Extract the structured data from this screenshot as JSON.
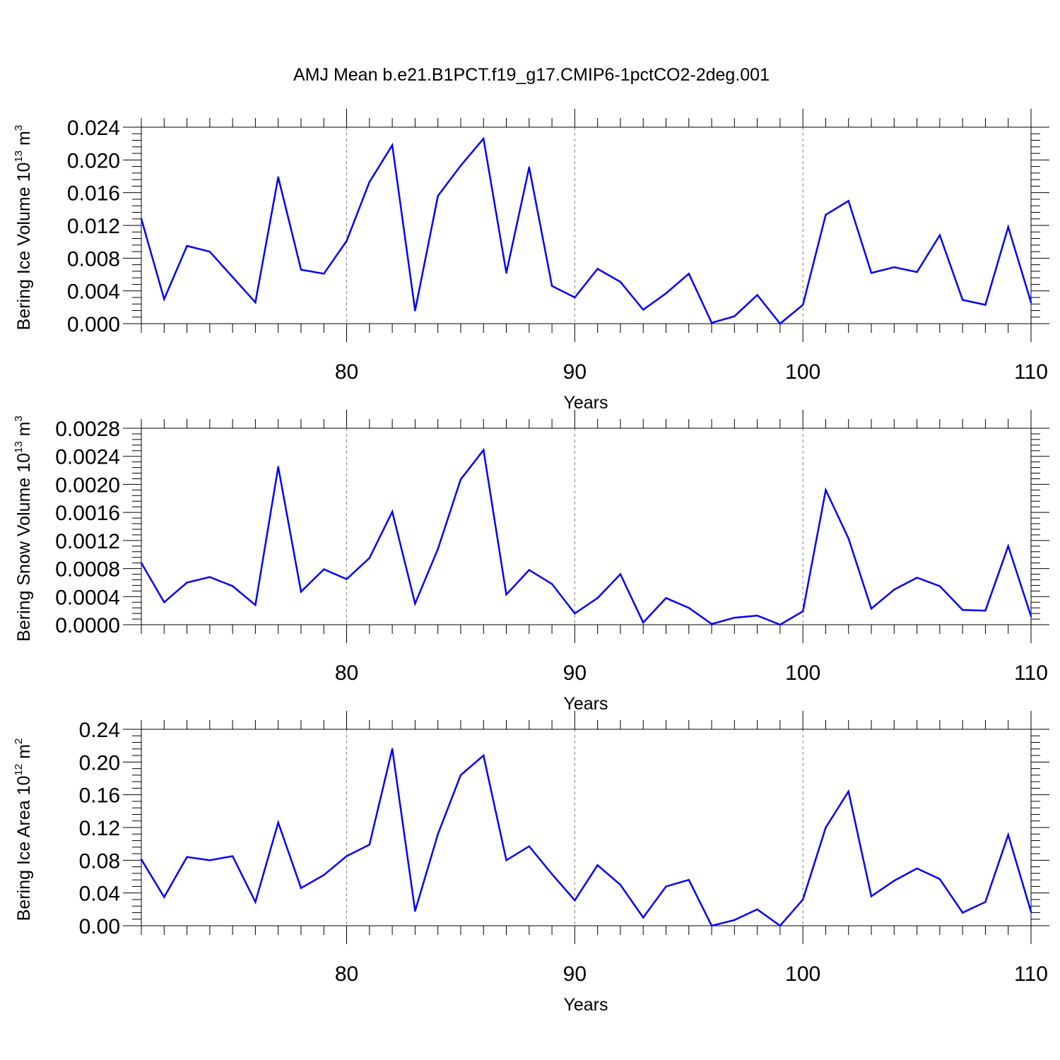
{
  "title": "AMJ Mean b.e21.B1PCT.f19_g17.CMIP6-1pctCO2-2deg.001",
  "colors": {
    "series": "#0000ff",
    "axes": "#000000",
    "gridlines": "#808080"
  },
  "chart_data": [
    {
      "type": "line",
      "xlabel": "Years",
      "ylabel_text": "Bering Ice Volume 10",
      "ylabel_sup": "13",
      "ylabel_unit": " m",
      "ylabel_unit_sup": "3",
      "xlim": [
        71,
        110
      ],
      "ylim": [
        0,
        0.024
      ],
      "xticks": [
        80,
        90,
        100,
        110
      ],
      "xtick_labels": [
        "80",
        "90",
        "100",
        "110"
      ],
      "yticks": [
        0,
        0.004,
        0.008,
        0.012,
        0.016,
        0.02,
        0.024
      ],
      "ytick_labels": [
        "0.000",
        "0.004",
        "0.008",
        "0.012",
        "0.016",
        "0.020",
        "0.024"
      ],
      "grid": "vertical dashed at major x ticks",
      "x": [
        71,
        72,
        73,
        74,
        75,
        76,
        77,
        78,
        79,
        80,
        81,
        82,
        83,
        84,
        85,
        86,
        87,
        88,
        89,
        90,
        91,
        92,
        93,
        94,
        95,
        96,
        97,
        98,
        99,
        100,
        101,
        102,
        103,
        104,
        105,
        106,
        107,
        108,
        109,
        110
      ],
      "values": [
        0.0128,
        0.003,
        0.0095,
        0.0088,
        0.0057,
        0.0026,
        0.0179,
        0.0066,
        0.0061,
        0.0101,
        0.0173,
        0.0218,
        0.0016,
        0.0156,
        0.0193,
        0.0226,
        0.0062,
        0.0191,
        0.0046,
        0.0032,
        0.0067,
        0.0051,
        0.0017,
        0.0037,
        0.0061,
        0.0001,
        0.0009,
        0.0035,
        0.0,
        0.0023,
        0.0133,
        0.015,
        0.0062,
        0.0069,
        0.0063,
        0.0108,
        0.0029,
        0.0023,
        0.0118,
        0.0026
      ]
    },
    {
      "type": "line",
      "xlabel": "Years",
      "ylabel_text": "Bering Snow Volume 10",
      "ylabel_sup": "13",
      "ylabel_unit": " m",
      "ylabel_unit_sup": "3",
      "xlim": [
        71,
        110
      ],
      "ylim": [
        0,
        0.0028
      ],
      "xticks": [
        80,
        90,
        100,
        110
      ],
      "xtick_labels": [
        "80",
        "90",
        "100",
        "110"
      ],
      "yticks": [
        0,
        0.0004,
        0.0008,
        0.0012,
        0.0016,
        0.002,
        0.0024,
        0.0028
      ],
      "ytick_labels": [
        "0.0000",
        "0.0004",
        "0.0008",
        "0.0012",
        "0.0016",
        "0.0020",
        "0.0024",
        "0.0028"
      ],
      "grid": "vertical dashed at major x ticks",
      "x": [
        71,
        72,
        73,
        74,
        75,
        76,
        77,
        78,
        79,
        80,
        81,
        82,
        83,
        84,
        85,
        86,
        87,
        88,
        89,
        90,
        91,
        92,
        93,
        94,
        95,
        96,
        97,
        98,
        99,
        100,
        101,
        102,
        103,
        104,
        105,
        106,
        107,
        108,
        109,
        110
      ],
      "values": [
        0.00088,
        0.00032,
        0.0006,
        0.00068,
        0.00055,
        0.00028,
        0.00225,
        0.00047,
        0.00079,
        0.00065,
        0.00095,
        0.00161,
        0.0003,
        0.00108,
        0.00207,
        0.00249,
        0.00043,
        0.00078,
        0.00058,
        0.00016,
        0.00038,
        0.00072,
        3e-05,
        0.00038,
        0.00024,
        1e-05,
        0.0001,
        0.00013,
        0.0,
        0.00019,
        0.00192,
        0.00123,
        0.00023,
        0.0005,
        0.00067,
        0.00055,
        0.00021,
        0.0002,
        0.00112,
        0.00012
      ]
    },
    {
      "type": "line",
      "xlabel": "Years",
      "ylabel_text": "Bering Ice Area 10",
      "ylabel_sup": "12",
      "ylabel_unit": " m",
      "ylabel_unit_sup": "2",
      "xlim": [
        71,
        110
      ],
      "ylim": [
        0,
        0.24
      ],
      "xticks": [
        80,
        90,
        100,
        110
      ],
      "xtick_labels": [
        "80",
        "90",
        "100",
        "110"
      ],
      "yticks": [
        0,
        0.04,
        0.08,
        0.12,
        0.16,
        0.2,
        0.24
      ],
      "ytick_labels": [
        "0.00",
        "0.04",
        "0.08",
        "0.12",
        "0.16",
        "0.20",
        "0.24"
      ],
      "grid": "vertical dashed at major x ticks",
      "x": [
        71,
        72,
        73,
        74,
        75,
        76,
        77,
        78,
        79,
        80,
        81,
        82,
        83,
        84,
        85,
        86,
        87,
        88,
        89,
        90,
        91,
        92,
        93,
        94,
        95,
        96,
        97,
        98,
        99,
        100,
        101,
        102,
        103,
        104,
        105,
        106,
        107,
        108,
        109,
        110
      ],
      "values": [
        0.081,
        0.035,
        0.084,
        0.08,
        0.085,
        0.029,
        0.126,
        0.046,
        0.062,
        0.085,
        0.099,
        0.216,
        0.018,
        0.112,
        0.184,
        0.208,
        0.08,
        0.097,
        0.063,
        0.031,
        0.074,
        0.05,
        0.01,
        0.048,
        0.056,
        0.0,
        0.007,
        0.02,
        0.0,
        0.032,
        0.12,
        0.164,
        0.036,
        0.055,
        0.07,
        0.057,
        0.016,
        0.029,
        0.111,
        0.017
      ]
    }
  ]
}
